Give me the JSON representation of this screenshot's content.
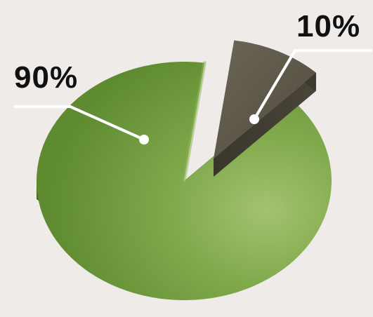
{
  "chart_data": {
    "type": "pie",
    "title": "",
    "slices": [
      {
        "label": "90%",
        "value": 90,
        "color": "#6e9a3e"
      },
      {
        "label": "10%",
        "value": 10,
        "color": "#5f5a4c"
      }
    ],
    "legend": "none",
    "exploded": "10%",
    "style": "3d"
  }
}
